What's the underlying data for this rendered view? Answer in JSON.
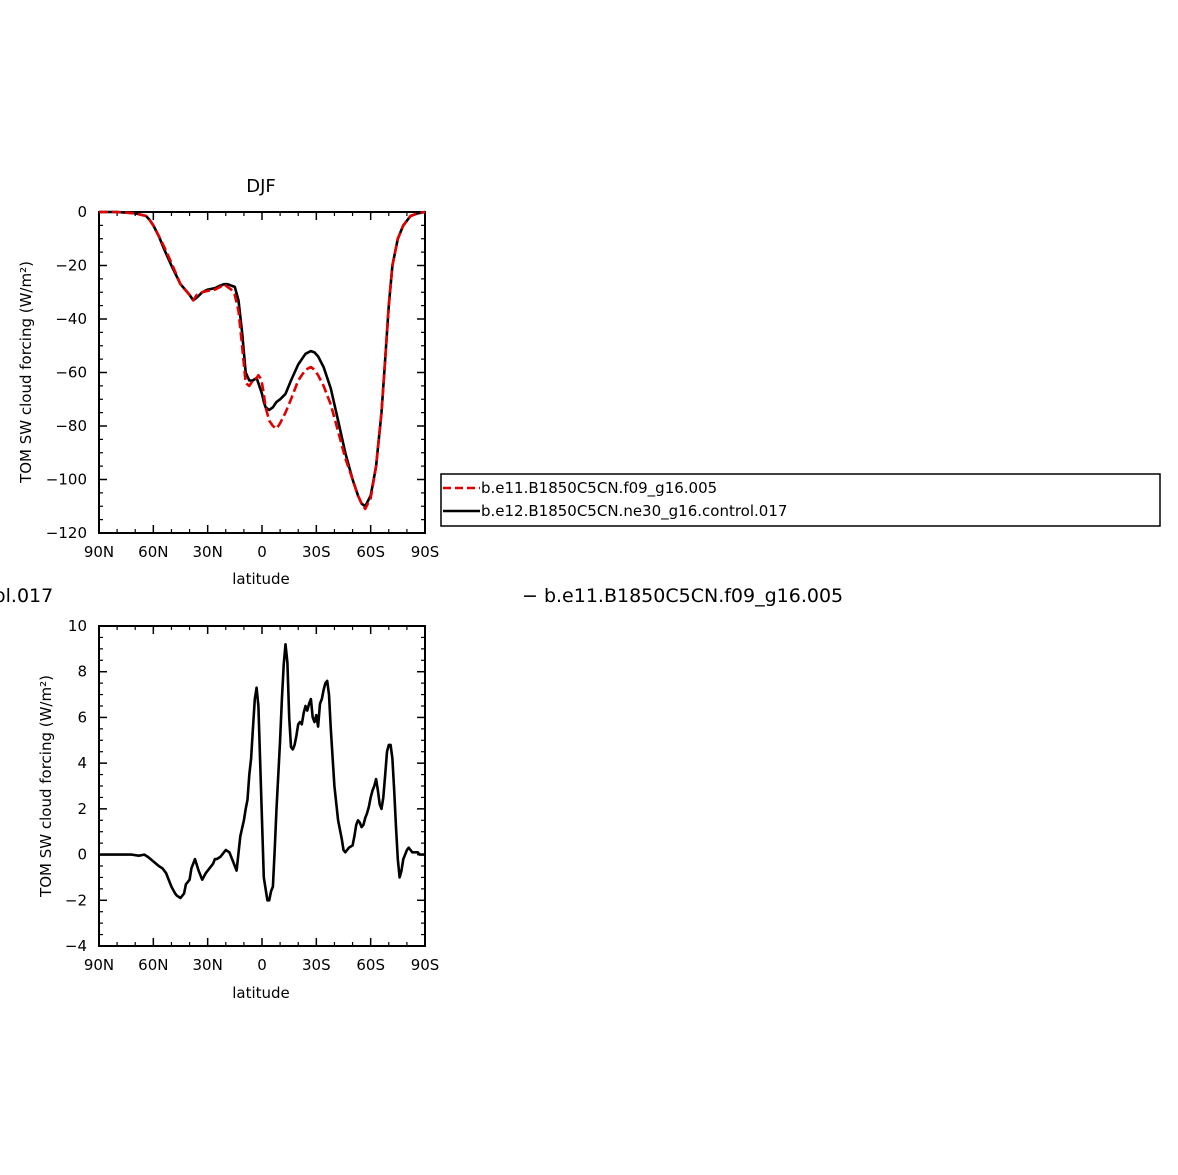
{
  "chart_data": [
    {
      "type": "line",
      "title": "DJF",
      "xlabel": "latitude",
      "ylabel": "TOM SW cloud forcing (W/m²)",
      "xlim": [
        -90,
        90
      ],
      "ylim": [
        -120,
        0
      ],
      "x_ticks": [
        "90N",
        "60N",
        "30N",
        "0",
        "30S",
        "60S",
        "90S"
      ],
      "y_ticks": [
        "0",
        "−20",
        "−40",
        "−60",
        "−80",
        "−100",
        "−120"
      ],
      "legend_position": "right",
      "series": [
        {
          "name": "b.e11.B1850C5CN.f09_g16.005",
          "color": "#e00000",
          "style": "dashed",
          "x": [
            -90,
            -80,
            -70,
            -64,
            -62,
            -60,
            -57,
            -54,
            -50,
            -45,
            -40,
            -38,
            -36,
            -33,
            -30,
            -26,
            -23,
            -21,
            -19,
            -17,
            -15,
            -13,
            -11,
            -9,
            -7,
            -5,
            -3,
            -2,
            -1,
            0,
            1,
            2,
            4,
            6,
            8,
            10,
            13,
            16,
            20,
            24,
            27,
            29,
            31,
            34,
            38,
            42,
            46,
            50,
            53,
            55,
            57,
            60,
            63,
            66,
            68,
            70,
            72,
            75,
            78,
            82,
            86,
            90
          ],
          "y": [
            0,
            0,
            -0.5,
            -1.5,
            -3,
            -5,
            -9,
            -13,
            -19,
            -27,
            -31,
            -33,
            -31,
            -30,
            -29.5,
            -29,
            -28,
            -27,
            -28,
            -29,
            -31,
            -37,
            -50,
            -64,
            -65,
            -63,
            -62,
            -61,
            -62,
            -64,
            -68,
            -73,
            -78,
            -80,
            -81,
            -79,
            -75,
            -70,
            -63,
            -59,
            -58,
            -59,
            -61,
            -65,
            -72,
            -82,
            -92,
            -100,
            -106,
            -109,
            -111,
            -107,
            -95,
            -75,
            -55,
            -35,
            -20,
            -10,
            -5,
            -1.5,
            -0.5,
            0
          ]
        },
        {
          "name": "b.e12.B1850C5CN.ne30_g16.control.017",
          "color": "#000000",
          "style": "solid",
          "x": [
            -90,
            -80,
            -70,
            -64,
            -62,
            -60,
            -57,
            -54,
            -50,
            -45,
            -40,
            -38,
            -36,
            -33,
            -30,
            -26,
            -23,
            -21,
            -19,
            -17,
            -15,
            -13,
            -11,
            -9,
            -7,
            -5,
            -3,
            -2,
            -1,
            0,
            1,
            2,
            4,
            6,
            8,
            10,
            13,
            16,
            20,
            24,
            27,
            29,
            31,
            34,
            38,
            42,
            46,
            50,
            53,
            55,
            57,
            60,
            63,
            66,
            68,
            70,
            72,
            75,
            78,
            82,
            86,
            90
          ],
          "y": [
            0,
            0,
            -0.5,
            -1.5,
            -3,
            -5,
            -9,
            -14,
            -20,
            -27,
            -31,
            -33,
            -32,
            -30,
            -29,
            -28.5,
            -27.5,
            -27,
            -27,
            -27.5,
            -28,
            -33,
            -45,
            -60,
            -63,
            -63,
            -62,
            -64,
            -66,
            -68,
            -71,
            -73,
            -74,
            -73,
            -71,
            -70,
            -68,
            -63,
            -57,
            -53,
            -52,
            -52.5,
            -54,
            -58,
            -66,
            -78,
            -90,
            -100,
            -106,
            -109,
            -110,
            -106,
            -95,
            -75,
            -55,
            -35,
            -20,
            -10,
            -5,
            -1.5,
            -0.5,
            0
          ]
        }
      ]
    },
    {
      "type": "line",
      "title": "",
      "xlabel": "latitude",
      "ylabel": "TOM SW cloud forcing (W/m²)",
      "xlim": [
        -90,
        90
      ],
      "ylim": [
        -4,
        10
      ],
      "x_ticks": [
        "90N",
        "60N",
        "30N",
        "0",
        "30S",
        "60S",
        "90S"
      ],
      "y_ticks": [
        "10",
        "8",
        "6",
        "4",
        "2",
        "0",
        "−2",
        "−4"
      ],
      "series": [
        {
          "name": "",
          "color": "#000000",
          "style": "solid",
          "x": [
            -90,
            -80,
            -72,
            -68,
            -65,
            -63,
            -60,
            -57,
            -55,
            -53,
            -50,
            -48,
            -47,
            -45,
            -43,
            -42,
            -40,
            -39,
            -37,
            -35,
            -33,
            -31,
            -29,
            -27,
            -26,
            -25,
            -23,
            -22,
            -20,
            -18,
            -16,
            -14,
            -12,
            -10,
            -9,
            -8,
            -7,
            -6,
            -5,
            -4,
            -3,
            -2,
            -1,
            0,
            1,
            2,
            3,
            4,
            5,
            6,
            7,
            8,
            9,
            10,
            11,
            12,
            13,
            14,
            15,
            16,
            17,
            18,
            19,
            20,
            21,
            22,
            23,
            24,
            25,
            26,
            27,
            28,
            29,
            30,
            31,
            32,
            33,
            34,
            35,
            36,
            37,
            38,
            40,
            42,
            44,
            45,
            46,
            47,
            48,
            50,
            51,
            52,
            53,
            54,
            55,
            56,
            57,
            58,
            59,
            60,
            61,
            62,
            63,
            64,
            65,
            66,
            67,
            68,
            69,
            70,
            71,
            72,
            73,
            74,
            75,
            76,
            77,
            78,
            79,
            80,
            81,
            82,
            83,
            84,
            85,
            86,
            87,
            88,
            89,
            90
          ],
          "y": [
            0,
            0,
            0,
            -0.05,
            0,
            -0.1,
            -0.3,
            -0.5,
            -0.6,
            -0.8,
            -1.4,
            -1.7,
            -1.8,
            -1.9,
            -1.7,
            -1.3,
            -1.1,
            -0.6,
            -0.2,
            -0.7,
            -1.1,
            -0.8,
            -0.6,
            -0.4,
            -0.2,
            -0.2,
            -0.1,
            0.0,
            0.2,
            0.1,
            -0.3,
            -0.7,
            0.8,
            1.5,
            2.0,
            2.4,
            3.5,
            4.2,
            5.5,
            6.8,
            7.3,
            6.5,
            4.0,
            1.5,
            -1.0,
            -1.5,
            -2.0,
            -2.0,
            -1.6,
            -1.4,
            0.2,
            2.0,
            3.5,
            5.0,
            6.8,
            8.3,
            9.2,
            8.4,
            6.0,
            4.7,
            4.6,
            4.8,
            5.2,
            5.7,
            5.8,
            5.7,
            6.2,
            6.5,
            6.3,
            6.6,
            6.8,
            6.0,
            5.8,
            6.1,
            5.6,
            6.6,
            6.8,
            7.2,
            7.5,
            7.6,
            7.0,
            5.5,
            3.0,
            1.5,
            0.7,
            0.2,
            0.1,
            0.2,
            0.3,
            0.4,
            0.8,
            1.3,
            1.5,
            1.4,
            1.2,
            1.3,
            1.6,
            1.8,
            2.1,
            2.5,
            2.8,
            3.0,
            3.3,
            2.8,
            2.2,
            2.0,
            2.5,
            3.5,
            4.5,
            4.8,
            4.8,
            4.2,
            2.8,
            1.2,
            -0.2,
            -1.0,
            -0.7,
            -0.2,
            0.0,
            0.2,
            0.3,
            0.2,
            0.1,
            0.1,
            0.1,
            0.1,
            0.0,
            0.0,
            0.0,
            0.0
          ]
        }
      ]
    }
  ],
  "legend": {
    "items": [
      {
        "label": "b.e11.B1850C5CN.f09_g16.005",
        "color": "#e00000",
        "style": "dashed"
      },
      {
        "label": "b.e12.B1850C5CN.ne30_g16.control.017",
        "color": "#000000",
        "style": "solid"
      }
    ]
  },
  "fragments": {
    "left": "ol.017",
    "right": "−  b.e11.B1850C5CN.f09_g16.005"
  }
}
